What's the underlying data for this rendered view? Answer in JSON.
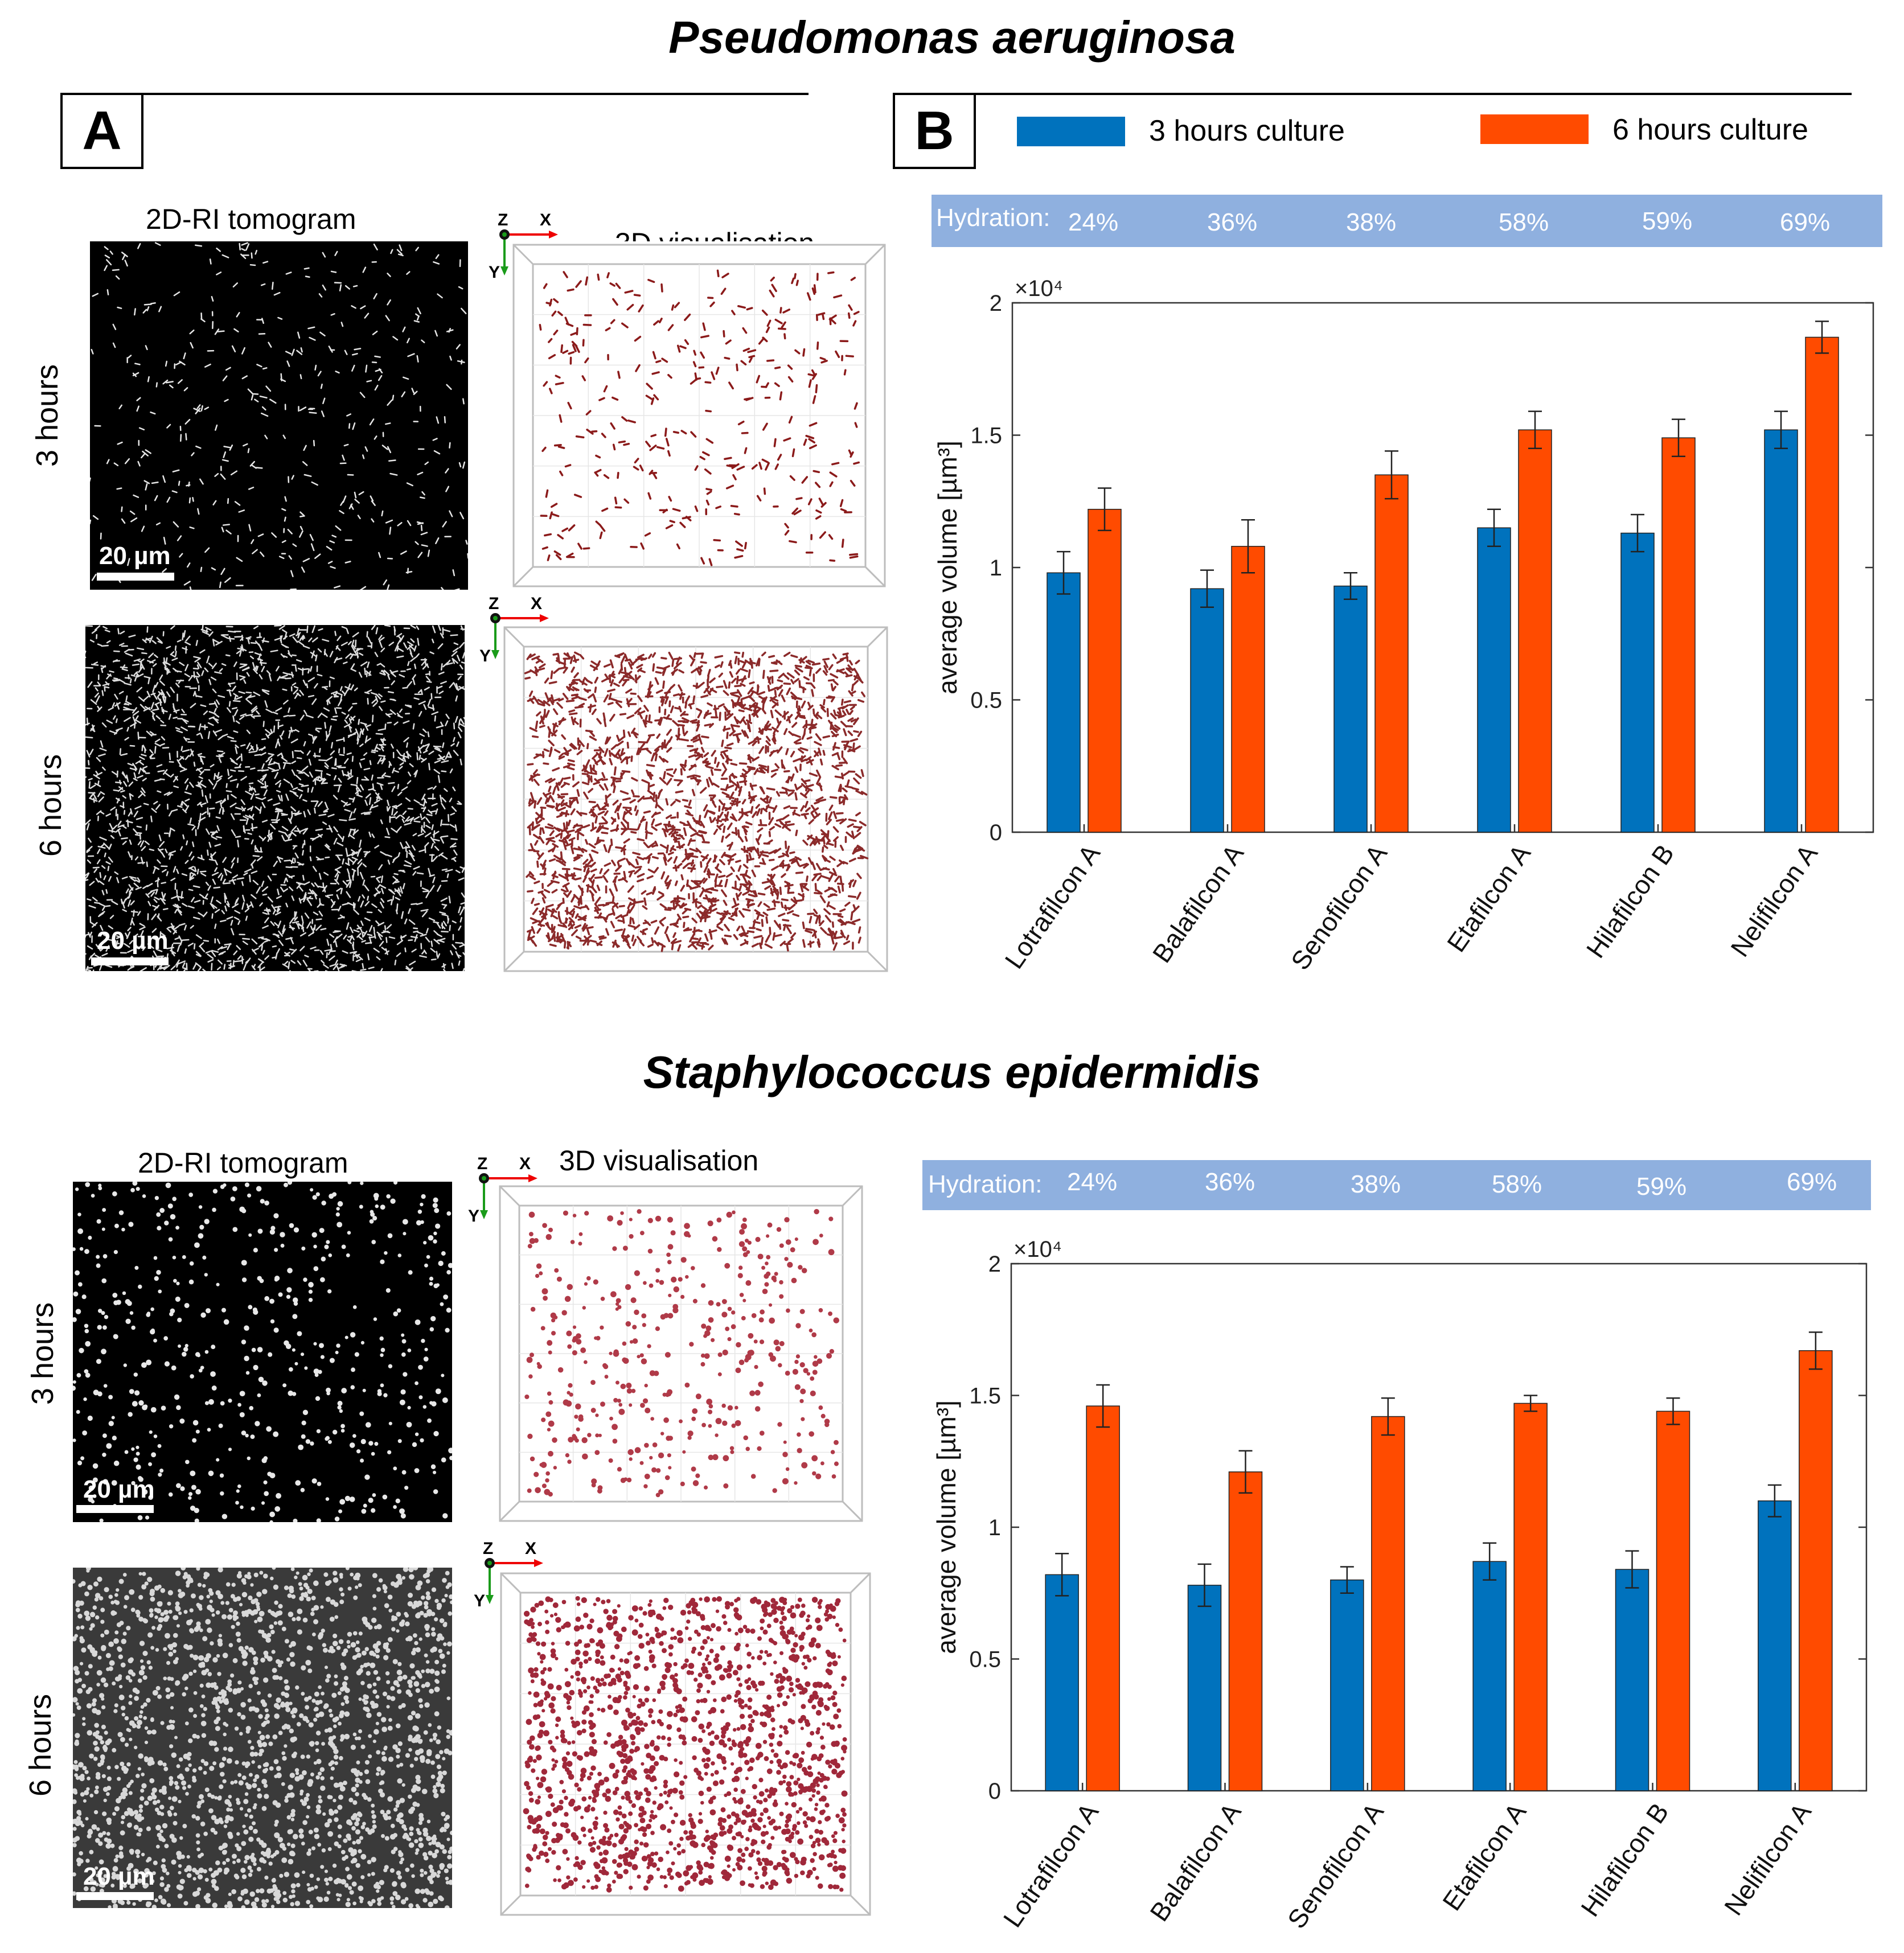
{
  "species_top": "Pseudomonas aeruginosa",
  "species_bottom": "Staphylococcus epidermidis",
  "panel_a": "A",
  "panel_b": "B",
  "legend": [
    {
      "label": "3 hours culture",
      "color": "#0072bd"
    },
    {
      "label": "6 hours culture",
      "color": "#ff4b00"
    }
  ],
  "col_2d": "2D-RI tomogram",
  "col_3d": "3D visualisation",
  "row_3h": "3 hours",
  "row_6h": "6 hours",
  "scale": "20 µm",
  "axis_z": "Z",
  "axis_x": "X",
  "axis_y": "Y",
  "hydration_label": "Hydration:",
  "hydration_values": [
    "24%",
    "36%",
    "38%",
    "58%",
    "59%",
    "69%"
  ],
  "colors": {
    "hydration_band": "#8fb0df",
    "bar_3h": "#0072bd",
    "bar_6h": "#ff4b00",
    "microscopy_dark": "#000000",
    "cells_3d": "#9b2a2a"
  },
  "chart_data": [
    {
      "type": "bar",
      "species": "Pseudomonas aeruginosa",
      "categories": [
        "Lotrafilcon A",
        "Balafilcon A",
        "Senofilcon A",
        "Etafilcon A",
        "Hilafilcon B",
        "Nelifilcon A"
      ],
      "ylabel": "average volume  [µm³]",
      "y_multiplier": "×10⁴",
      "ylim": [
        0,
        2
      ],
      "yticks": [
        "0",
        "0.5",
        "1",
        "1.5",
        "2"
      ],
      "series": [
        {
          "name": "3 hours culture",
          "values": [
            0.98,
            0.92,
            0.93,
            1.15,
            1.13,
            1.52
          ],
          "errors": [
            0.08,
            0.07,
            0.05,
            0.07,
            0.07,
            0.07
          ]
        },
        {
          "name": "6 hours culture",
          "values": [
            1.22,
            1.08,
            1.35,
            1.52,
            1.49,
            1.87
          ],
          "errors": [
            0.08,
            0.1,
            0.09,
            0.07,
            0.07,
            0.06
          ]
        }
      ]
    },
    {
      "type": "bar",
      "species": "Staphylococcus epidermidis",
      "categories": [
        "Lotrafilcon A",
        "Balafilcon A",
        "Senofilcon A",
        "Etafilcon A",
        "Hilafilcon B",
        "Nelifilcon A"
      ],
      "ylabel": "average volume  [µm³]",
      "y_multiplier": "×10⁴",
      "ylim": [
        0,
        2
      ],
      "yticks": [
        "0",
        "0.5",
        "1",
        "1.5",
        "2"
      ],
      "series": [
        {
          "name": "3 hours culture",
          "values": [
            0.82,
            0.78,
            0.8,
            0.87,
            0.84,
            1.1
          ],
          "errors": [
            0.08,
            0.08,
            0.05,
            0.07,
            0.07,
            0.06
          ]
        },
        {
          "name": "6 hours culture",
          "values": [
            1.46,
            1.21,
            1.42,
            1.47,
            1.44,
            1.67
          ],
          "errors": [
            0.08,
            0.08,
            0.07,
            0.03,
            0.05,
            0.07
          ]
        }
      ]
    }
  ]
}
